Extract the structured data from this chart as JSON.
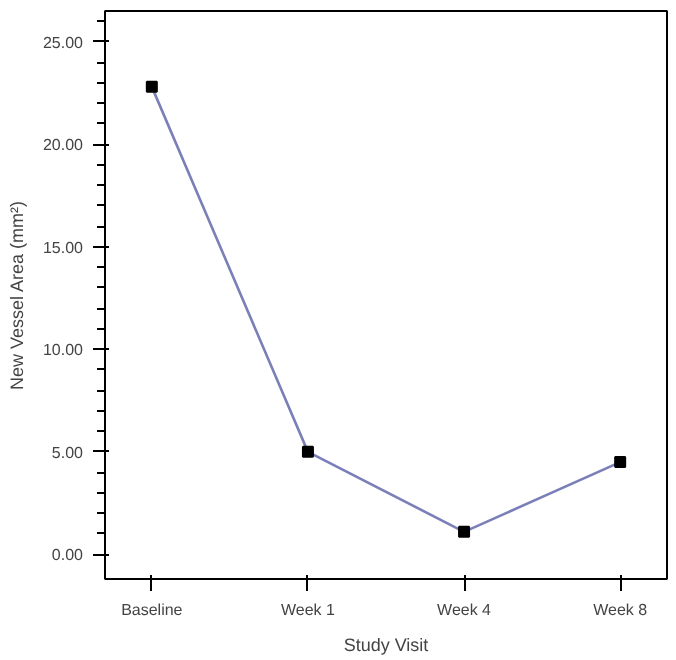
{
  "chart_data": {
    "type": "line",
    "xlabel": "Study Visit",
    "ylabel": "New Vessel Area (mm²)",
    "categories": [
      "Baseline",
      "Week 1",
      "Week 4",
      "Week 8"
    ],
    "series": [
      {
        "color": "#7b7fb8",
        "values": [
          22.8,
          5.0,
          1.1,
          4.5
        ]
      }
    ],
    "ylim": [
      -1.2,
      26.5
    ],
    "yticks": [
      {
        "value": 0,
        "label": "0.00"
      },
      {
        "value": 5,
        "label": "5.00"
      },
      {
        "value": 10,
        "label": "10.00"
      },
      {
        "value": 15,
        "label": "15.00"
      },
      {
        "value": 20,
        "label": "20.00"
      },
      {
        "value": 25,
        "label": "25.00"
      }
    ],
    "marker": "square",
    "line_style": "solid",
    "grid": false
  }
}
